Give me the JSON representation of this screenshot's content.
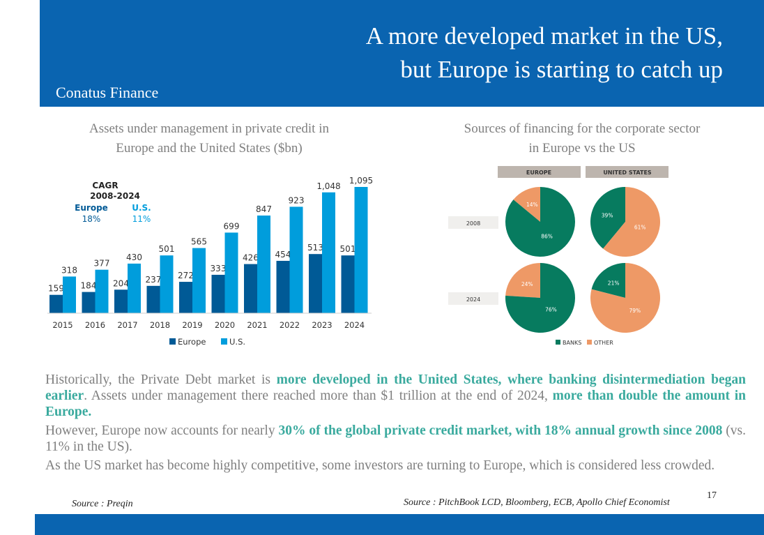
{
  "header": {
    "title_line1": "A more developed market in the US,",
    "title_line2": "but Europe is starting to catch up",
    "brand": "Conatus Finance"
  },
  "left_chart_title_l1": "Assets under management in private credit in",
  "left_chart_title_l2": "Europe and the United States ($bn)",
  "right_chart_title_l1": "Sources of financing for the corporate sector",
  "right_chart_title_l2": "in Europe vs the US",
  "chart_data": [
    {
      "type": "bar",
      "categories": [
        "2015",
        "2016",
        "2017",
        "2018",
        "2019",
        "2020",
        "2021",
        "2022",
        "2023",
        "2024"
      ],
      "series": [
        {
          "name": "Europe",
          "values": [
            159,
            184,
            204,
            237,
            272,
            333,
            426,
            454,
            513,
            501
          ],
          "color": "#005a96"
        },
        {
          "name": "U.S.",
          "values": [
            318,
            377,
            430,
            501,
            565,
            699,
            847,
            923,
            1048,
            1095
          ],
          "color": "#009ddc"
        }
      ],
      "value_labels": {
        "Europe": [
          "159",
          "184",
          "204",
          "237",
          "272",
          "333",
          "426",
          "454",
          "513",
          "501"
        ],
        "U.S.": [
          "318",
          "377",
          "430",
          "501",
          "565",
          "699",
          "847",
          "923",
          "1,048",
          "1,095"
        ]
      },
      "annotation": {
        "title1": "CAGR",
        "title2": "2008-2024",
        "europe_label": "Europe",
        "europe_value": "18%",
        "us_label": "U.S.",
        "us_value": "11%"
      },
      "legend": "bottom",
      "grid": false,
      "ylim": [
        0,
        1095
      ]
    },
    {
      "type": "pie",
      "columns": [
        "EUROPE",
        "UNITED STATES"
      ],
      "rows": [
        "2008",
        "2024"
      ],
      "pies": [
        {
          "region": "EUROPE",
          "year": "2008",
          "banks": 86,
          "other": 14
        },
        {
          "region": "UNITED STATES",
          "year": "2008",
          "banks": 39,
          "other": 61
        },
        {
          "region": "EUROPE",
          "year": "2024",
          "banks": 76,
          "other": 24
        },
        {
          "region": "UNITED STATES",
          "year": "2024",
          "banks": 21,
          "other": 79
        }
      ],
      "legend": [
        "BANKS",
        "OTHER"
      ],
      "colors": {
        "banks": "#077b5f",
        "other": "#ee9966"
      }
    }
  ],
  "text": {
    "p1a": "Historically, the Private Debt market is ",
    "p1b": "more developed in the United States, where banking disintermediation began earlier",
    "p1c": ". Assets under management there reached more than $1 trillion at the end of 2024, ",
    "p1d": "more than double the amount in Europe.",
    "p2a": "However, Europe now accounts for nearly ",
    "p2b": "30% of the global private credit market, with 18% annual growth since 2008",
    "p2c": " (vs. 11% in the US).",
    "p3": "As the US market has become highly competitive, some investors are turning to Europe, which is considered less crowded."
  },
  "sources": {
    "left": "Source : Preqin",
    "right": "Source : PitchBook LCD, Bloomberg, ECB, Apollo Chief Economist"
  },
  "page_number": "17"
}
